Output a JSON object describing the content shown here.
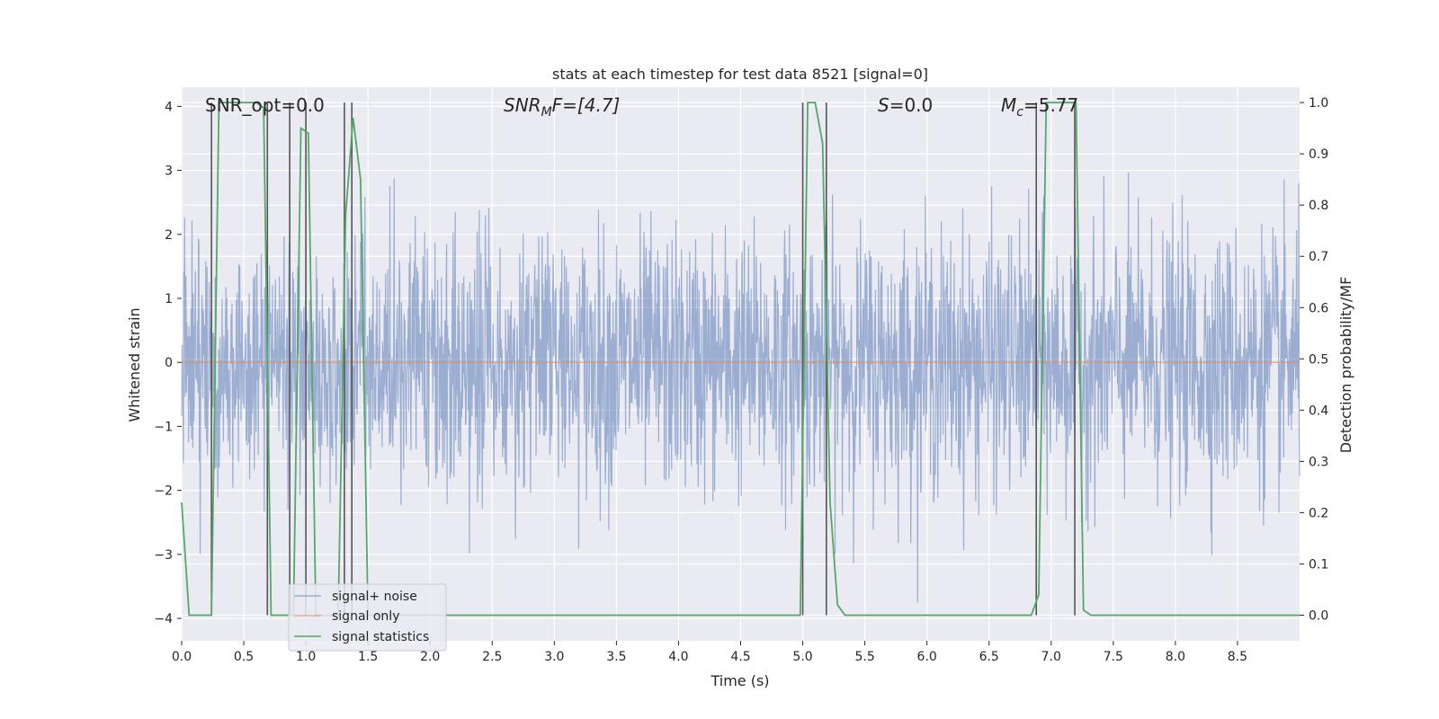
{
  "chart_data": {
    "type": "line",
    "title": "stats at each timestep for test data 8521 [signal=0]",
    "xlabel": "Time (s)",
    "ylabel_left": "Whitened strain",
    "ylabel_right": "Detection probability/MF",
    "xlim": [
      0.0,
      9.0
    ],
    "ylim_left": [
      -4.35,
      4.3
    ],
    "ylim_right": [
      -0.05,
      1.03
    ],
    "xticks": [
      "0.0",
      "0.5",
      "1.0",
      "1.5",
      "2.0",
      "2.5",
      "3.0",
      "3.5",
      "4.0",
      "4.5",
      "5.0",
      "5.5",
      "6.0",
      "6.5",
      "7.0",
      "7.5",
      "8.0",
      "8.5"
    ],
    "xtick_values": [
      0.0,
      0.5,
      1.0,
      1.5,
      2.0,
      2.5,
      3.0,
      3.5,
      4.0,
      4.5,
      5.0,
      5.5,
      6.0,
      6.5,
      7.0,
      7.5,
      8.0,
      8.5
    ],
    "yticks_left": [
      "−4",
      "−3",
      "−2",
      "−1",
      "0",
      "1",
      "2",
      "3",
      "4"
    ],
    "ytick_values_left": [
      -4,
      -3,
      -2,
      -1,
      0,
      1,
      2,
      3,
      4
    ],
    "yticks_right": [
      "0.0",
      "0.1",
      "0.2",
      "0.3",
      "0.4",
      "0.5",
      "0.6",
      "0.7",
      "0.8",
      "0.9",
      "1.0"
    ],
    "ytick_values_right": [
      0.0,
      0.1,
      0.2,
      0.3,
      0.4,
      0.5,
      0.6,
      0.7,
      0.8,
      0.9,
      1.0
    ],
    "annotations": {
      "snr_opt": "SNR_opt=0.0",
      "snr_mf_base": "SNR",
      "snr_mf_sub": "M",
      "snr_mf_rest": "F=[4.7]",
      "s_label": "S",
      "s_value": "=0.0",
      "mc_base": "M",
      "mc_sub": "c",
      "mc_value": "=5.77"
    },
    "legend": {
      "location": "lower-left",
      "entries": [
        "signal+ noise",
        "signal only",
        "signal statistics"
      ]
    },
    "series": [
      {
        "name": "signal+ noise",
        "color": "#4C72B0",
        "kind": "noise",
        "sigma": 1.0,
        "spike_max": 3.9,
        "spike_min": -3.75
      },
      {
        "name": "signal only",
        "color": "#DD8452",
        "values_note": "flat zero",
        "x": [
          0.0,
          9.0
        ],
        "y": [
          0.0,
          0.0
        ]
      },
      {
        "name": "signal statistics",
        "color": "#55A868",
        "axis": "right",
        "x": [
          0.0,
          0.06,
          0.12,
          0.18,
          0.24,
          0.3,
          0.36,
          0.42,
          0.48,
          0.54,
          0.6,
          0.66,
          0.72,
          0.78,
          0.84,
          0.9,
          0.96,
          1.02,
          1.08,
          1.14,
          1.2,
          1.26,
          1.32,
          1.38,
          1.44,
          1.5,
          1.56,
          1.62,
          1.68,
          4.92,
          4.98,
          5.04,
          5.1,
          5.16,
          5.22,
          5.28,
          5.34,
          5.4,
          6.84,
          6.9,
          6.96,
          7.02,
          7.08,
          7.14,
          7.2,
          7.26,
          7.32,
          9.0
        ],
        "y": [
          0.22,
          0.0,
          0.0,
          0.0,
          0.0,
          1.0,
          1.0,
          1.0,
          1.0,
          1.0,
          1.0,
          0.99,
          0.0,
          0.0,
          0.0,
          0.0,
          0.95,
          0.94,
          0.0,
          0.0,
          0.0,
          0.0,
          0.78,
          0.97,
          0.85,
          0.0,
          0.0,
          0.0,
          0.0,
          0.0,
          0.0,
          1.0,
          1.0,
          0.92,
          0.22,
          0.02,
          0.0,
          0.0,
          0.0,
          0.04,
          1.0,
          1.0,
          1.0,
          1.0,
          1.0,
          0.01,
          0.0,
          0.0
        ]
      }
    ],
    "vertical_markers_s": [
      0.24,
      0.69,
      0.87,
      1.0,
      1.31,
      1.37,
      5.0,
      5.19,
      6.88,
      7.19
    ]
  }
}
